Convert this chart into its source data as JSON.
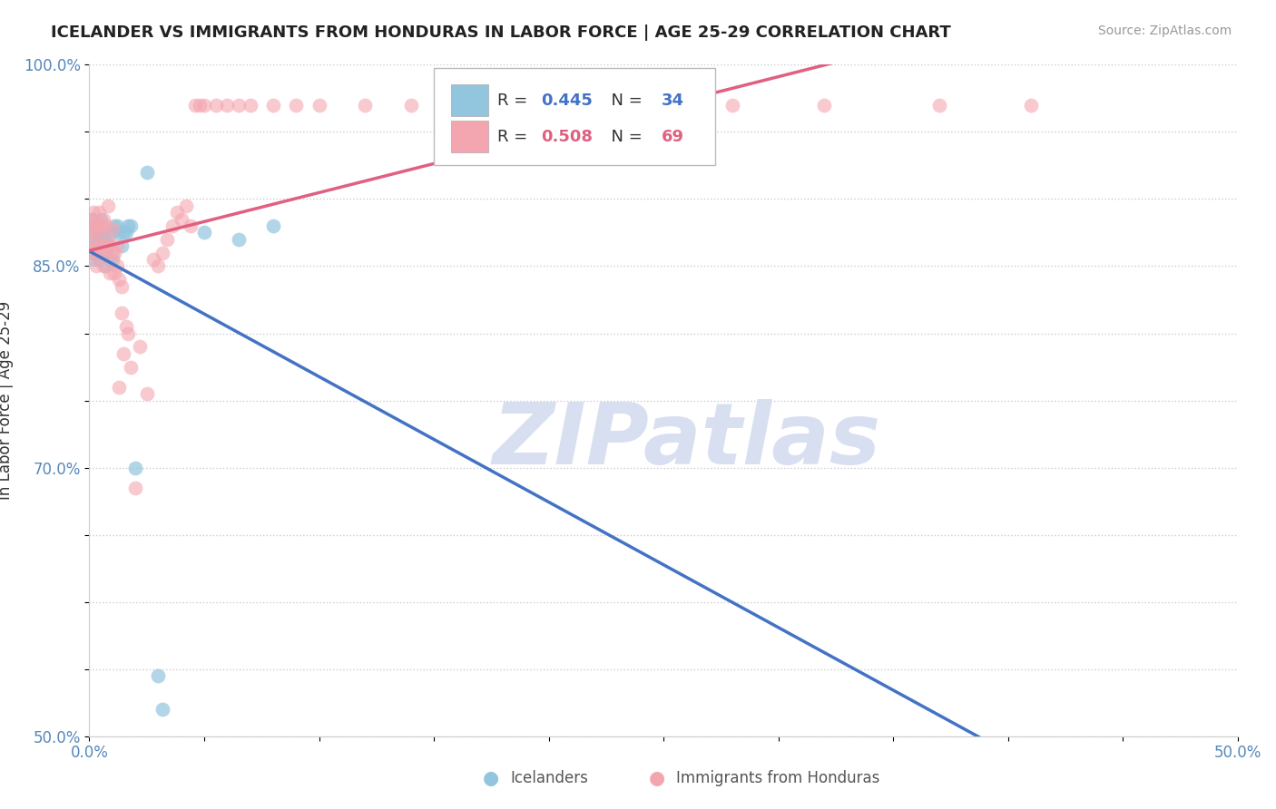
{
  "title": "ICELANDER VS IMMIGRANTS FROM HONDURAS IN LABOR FORCE | AGE 25-29 CORRELATION CHART",
  "source": "Source: ZipAtlas.com",
  "ylabel": "In Labor Force | Age 25-29",
  "xlim": [
    0.0,
    0.5
  ],
  "ylim": [
    0.5,
    1.0
  ],
  "xticks": [
    0.0,
    0.05,
    0.1,
    0.15,
    0.2,
    0.25,
    0.3,
    0.35,
    0.4,
    0.45,
    0.5
  ],
  "xticklabels": [
    "0.0%",
    "",
    "",
    "",
    "",
    "",
    "",
    "",
    "",
    "",
    "50.0%"
  ],
  "yticks": [
    0.5,
    0.55,
    0.6,
    0.65,
    0.7,
    0.75,
    0.8,
    0.85,
    0.9,
    0.95,
    1.0
  ],
  "yticklabels": [
    "50.0%",
    "",
    "",
    "",
    "70.0%",
    "",
    "",
    "85.0%",
    "",
    "",
    "100.0%"
  ],
  "blue_color": "#92c5de",
  "pink_color": "#f4a6b0",
  "blue_line_color": "#4472c4",
  "pink_line_color": "#e06080",
  "icelander_label": "Icelanders",
  "honduras_label": "Immigrants from Honduras",
  "blue_R": 0.445,
  "blue_N": 34,
  "pink_R": 0.508,
  "pink_N": 69,
  "blue_x": [
    0.001,
    0.001,
    0.002,
    0.002,
    0.002,
    0.003,
    0.003,
    0.004,
    0.004,
    0.005,
    0.005,
    0.006,
    0.006,
    0.007,
    0.007,
    0.008,
    0.009,
    0.01,
    0.01,
    0.011,
    0.012,
    0.013,
    0.014,
    0.015,
    0.016,
    0.017,
    0.018,
    0.02,
    0.025,
    0.03,
    0.032,
    0.05,
    0.065,
    0.08
  ],
  "blue_y": [
    0.885,
    0.87,
    0.88,
    0.865,
    0.855,
    0.875,
    0.86,
    0.875,
    0.855,
    0.885,
    0.87,
    0.875,
    0.86,
    0.87,
    0.85,
    0.865,
    0.855,
    0.875,
    0.855,
    0.88,
    0.88,
    0.875,
    0.865,
    0.875,
    0.875,
    0.88,
    0.88,
    0.7,
    0.92,
    0.545,
    0.52,
    0.875,
    0.87,
    0.88
  ],
  "pink_x": [
    0.001,
    0.001,
    0.001,
    0.001,
    0.002,
    0.002,
    0.002,
    0.003,
    0.003,
    0.003,
    0.004,
    0.004,
    0.004,
    0.005,
    0.005,
    0.006,
    0.006,
    0.006,
    0.007,
    0.007,
    0.008,
    0.008,
    0.009,
    0.009,
    0.01,
    0.01,
    0.011,
    0.011,
    0.012,
    0.012,
    0.013,
    0.013,
    0.014,
    0.014,
    0.015,
    0.016,
    0.017,
    0.018,
    0.02,
    0.022,
    0.025,
    0.028,
    0.03,
    0.032,
    0.034,
    0.036,
    0.038,
    0.04,
    0.042,
    0.044,
    0.046,
    0.048,
    0.05,
    0.055,
    0.06,
    0.065,
    0.07,
    0.08,
    0.09,
    0.1,
    0.12,
    0.14,
    0.16,
    0.2,
    0.24,
    0.28,
    0.32,
    0.37,
    0.41
  ],
  "pink_y": [
    0.885,
    0.88,
    0.87,
    0.86,
    0.89,
    0.875,
    0.86,
    0.88,
    0.865,
    0.85,
    0.89,
    0.875,
    0.86,
    0.88,
    0.865,
    0.885,
    0.865,
    0.85,
    0.88,
    0.86,
    0.895,
    0.87,
    0.865,
    0.845,
    0.878,
    0.86,
    0.86,
    0.845,
    0.865,
    0.85,
    0.76,
    0.84,
    0.835,
    0.815,
    0.785,
    0.805,
    0.8,
    0.775,
    0.685,
    0.79,
    0.755,
    0.855,
    0.85,
    0.86,
    0.87,
    0.88,
    0.89,
    0.885,
    0.895,
    0.88,
    0.97,
    0.97,
    0.97,
    0.97,
    0.97,
    0.97,
    0.97,
    0.97,
    0.97,
    0.97,
    0.97,
    0.97,
    0.97,
    0.97,
    0.97,
    0.97,
    0.97,
    0.97,
    0.97
  ],
  "watermark_text": "ZIPatlas",
  "watermark_color": "#d8dff0"
}
